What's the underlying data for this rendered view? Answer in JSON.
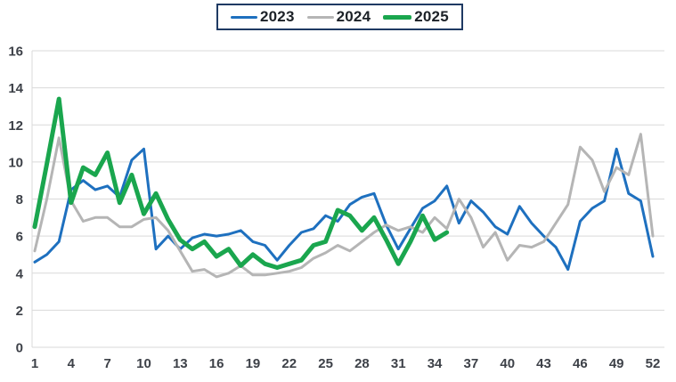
{
  "legend": {
    "note": "year series legend"
  },
  "chart_data": {
    "type": "line",
    "title": "",
    "xlabel": "",
    "ylabel": "",
    "x_range": [
      1,
      52
    ],
    "x_label_ticks": [
      1,
      4,
      7,
      10,
      13,
      16,
      19,
      22,
      25,
      28,
      31,
      34,
      37,
      40,
      43,
      46,
      49,
      52
    ],
    "ylim": [
      0,
      16
    ],
    "ytick_step": 2,
    "grid": "horizontal",
    "legend_position": "top-center",
    "background": "#ffffff",
    "gridline_color": "#d9d9d9",
    "tick_label_color": "#3d4148",
    "legend_border_color": "#1f3a63",
    "series": [
      {
        "name": "2023",
        "color": "#1e70bf",
        "stroke_width": 3,
        "x_start": 1,
        "values": [
          4.6,
          5.0,
          5.7,
          8.5,
          9.0,
          8.5,
          8.7,
          8.1,
          10.1,
          10.7,
          5.3,
          6.0,
          5.3,
          5.9,
          6.1,
          6.0,
          6.1,
          6.3,
          5.7,
          5.5,
          4.7,
          5.5,
          6.2,
          6.4,
          7.1,
          6.8,
          7.7,
          8.1,
          8.3,
          6.6,
          5.3,
          6.4,
          7.5,
          7.9,
          8.7,
          6.7,
          7.9,
          7.3,
          6.5,
          6.1,
          7.6,
          6.7,
          6.0,
          5.4,
          4.2,
          6.8,
          7.5,
          7.9,
          10.7,
          8.3,
          7.9,
          4.9
        ]
      },
      {
        "name": "2024",
        "color": "#b5b5b5",
        "stroke_width": 3,
        "x_start": 1,
        "values": [
          5.2,
          8.0,
          11.3,
          7.9,
          6.8,
          7.0,
          7.0,
          6.5,
          6.5,
          6.9,
          7.0,
          6.3,
          5.2,
          4.1,
          4.2,
          3.8,
          4.0,
          4.4,
          3.9,
          3.9,
          4.0,
          4.1,
          4.3,
          4.8,
          5.1,
          5.5,
          5.2,
          5.7,
          6.2,
          6.6,
          6.3,
          6.5,
          6.2,
          7.0,
          6.4,
          8.0,
          7.0,
          5.4,
          6.2,
          4.7,
          5.5,
          5.4,
          5.7,
          6.7,
          7.7,
          10.8,
          10.1,
          8.4,
          9.7,
          9.3,
          11.5,
          6.0
        ]
      },
      {
        "name": "2025",
        "color": "#1aa64e",
        "stroke_width": 5,
        "x_start": 1,
        "values": [
          6.5,
          9.9,
          13.4,
          7.8,
          9.7,
          9.3,
          10.5,
          7.8,
          9.3,
          7.2,
          8.3,
          6.9,
          5.8,
          5.3,
          5.7,
          4.9,
          5.3,
          4.4,
          5.0,
          4.5,
          4.3,
          4.5,
          4.7,
          5.5,
          5.7,
          7.4,
          7.1,
          6.3,
          7.0,
          5.8,
          4.5,
          5.7,
          7.1,
          5.8,
          6.2
        ]
      }
    ]
  }
}
